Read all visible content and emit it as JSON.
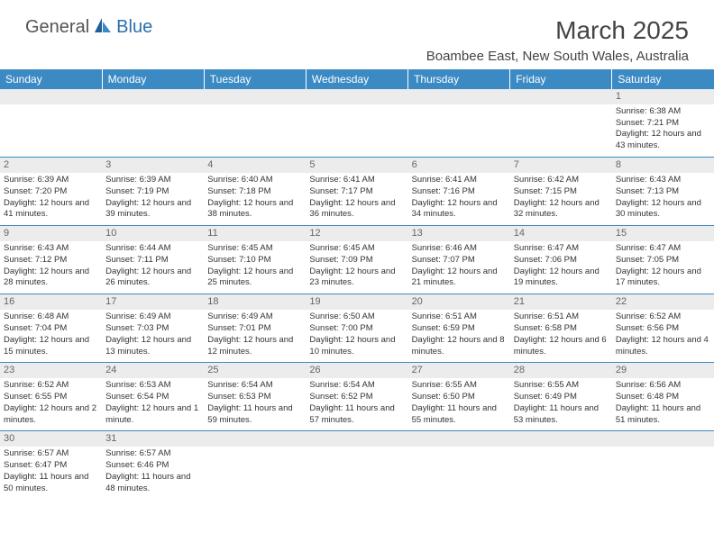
{
  "logo": {
    "part1": "General",
    "part2": "Blue"
  },
  "title": "March 2025",
  "location": "Boambee East, New South Wales, Australia",
  "colors": {
    "header_bg": "#3b8ac4",
    "header_text": "#ffffff",
    "daynum_bg": "#ececec",
    "border": "#3b8ac4",
    "logo_gray": "#555555",
    "logo_blue": "#2a6fb0"
  },
  "weekdays": [
    "Sunday",
    "Monday",
    "Tuesday",
    "Wednesday",
    "Thursday",
    "Friday",
    "Saturday"
  ],
  "days": {
    "1": {
      "sunrise": "6:38 AM",
      "sunset": "7:21 PM",
      "daylight": "12 hours and 43 minutes."
    },
    "2": {
      "sunrise": "6:39 AM",
      "sunset": "7:20 PM",
      "daylight": "12 hours and 41 minutes."
    },
    "3": {
      "sunrise": "6:39 AM",
      "sunset": "7:19 PM",
      "daylight": "12 hours and 39 minutes."
    },
    "4": {
      "sunrise": "6:40 AM",
      "sunset": "7:18 PM",
      "daylight": "12 hours and 38 minutes."
    },
    "5": {
      "sunrise": "6:41 AM",
      "sunset": "7:17 PM",
      "daylight": "12 hours and 36 minutes."
    },
    "6": {
      "sunrise": "6:41 AM",
      "sunset": "7:16 PM",
      "daylight": "12 hours and 34 minutes."
    },
    "7": {
      "sunrise": "6:42 AM",
      "sunset": "7:15 PM",
      "daylight": "12 hours and 32 minutes."
    },
    "8": {
      "sunrise": "6:43 AM",
      "sunset": "7:13 PM",
      "daylight": "12 hours and 30 minutes."
    },
    "9": {
      "sunrise": "6:43 AM",
      "sunset": "7:12 PM",
      "daylight": "12 hours and 28 minutes."
    },
    "10": {
      "sunrise": "6:44 AM",
      "sunset": "7:11 PM",
      "daylight": "12 hours and 26 minutes."
    },
    "11": {
      "sunrise": "6:45 AM",
      "sunset": "7:10 PM",
      "daylight": "12 hours and 25 minutes."
    },
    "12": {
      "sunrise": "6:45 AM",
      "sunset": "7:09 PM",
      "daylight": "12 hours and 23 minutes."
    },
    "13": {
      "sunrise": "6:46 AM",
      "sunset": "7:07 PM",
      "daylight": "12 hours and 21 minutes."
    },
    "14": {
      "sunrise": "6:47 AM",
      "sunset": "7:06 PM",
      "daylight": "12 hours and 19 minutes."
    },
    "15": {
      "sunrise": "6:47 AM",
      "sunset": "7:05 PM",
      "daylight": "12 hours and 17 minutes."
    },
    "16": {
      "sunrise": "6:48 AM",
      "sunset": "7:04 PM",
      "daylight": "12 hours and 15 minutes."
    },
    "17": {
      "sunrise": "6:49 AM",
      "sunset": "7:03 PM",
      "daylight": "12 hours and 13 minutes."
    },
    "18": {
      "sunrise": "6:49 AM",
      "sunset": "7:01 PM",
      "daylight": "12 hours and 12 minutes."
    },
    "19": {
      "sunrise": "6:50 AM",
      "sunset": "7:00 PM",
      "daylight": "12 hours and 10 minutes."
    },
    "20": {
      "sunrise": "6:51 AM",
      "sunset": "6:59 PM",
      "daylight": "12 hours and 8 minutes."
    },
    "21": {
      "sunrise": "6:51 AM",
      "sunset": "6:58 PM",
      "daylight": "12 hours and 6 minutes."
    },
    "22": {
      "sunrise": "6:52 AM",
      "sunset": "6:56 PM",
      "daylight": "12 hours and 4 minutes."
    },
    "23": {
      "sunrise": "6:52 AM",
      "sunset": "6:55 PM",
      "daylight": "12 hours and 2 minutes."
    },
    "24": {
      "sunrise": "6:53 AM",
      "sunset": "6:54 PM",
      "daylight": "12 hours and 1 minute."
    },
    "25": {
      "sunrise": "6:54 AM",
      "sunset": "6:53 PM",
      "daylight": "11 hours and 59 minutes."
    },
    "26": {
      "sunrise": "6:54 AM",
      "sunset": "6:52 PM",
      "daylight": "11 hours and 57 minutes."
    },
    "27": {
      "sunrise": "6:55 AM",
      "sunset": "6:50 PM",
      "daylight": "11 hours and 55 minutes."
    },
    "28": {
      "sunrise": "6:55 AM",
      "sunset": "6:49 PM",
      "daylight": "11 hours and 53 minutes."
    },
    "29": {
      "sunrise": "6:56 AM",
      "sunset": "6:48 PM",
      "daylight": "11 hours and 51 minutes."
    },
    "30": {
      "sunrise": "6:57 AM",
      "sunset": "6:47 PM",
      "daylight": "11 hours and 50 minutes."
    },
    "31": {
      "sunrise": "6:57 AM",
      "sunset": "6:46 PM",
      "daylight": "11 hours and 48 minutes."
    }
  },
  "labels": {
    "sunrise": "Sunrise: ",
    "sunset": "Sunset: ",
    "daylight": "Daylight: "
  },
  "grid": [
    [
      null,
      null,
      null,
      null,
      null,
      null,
      "1"
    ],
    [
      "2",
      "3",
      "4",
      "5",
      "6",
      "7",
      "8"
    ],
    [
      "9",
      "10",
      "11",
      "12",
      "13",
      "14",
      "15"
    ],
    [
      "16",
      "17",
      "18",
      "19",
      "20",
      "21",
      "22"
    ],
    [
      "23",
      "24",
      "25",
      "26",
      "27",
      "28",
      "29"
    ],
    [
      "30",
      "31",
      null,
      null,
      null,
      null,
      null
    ]
  ]
}
